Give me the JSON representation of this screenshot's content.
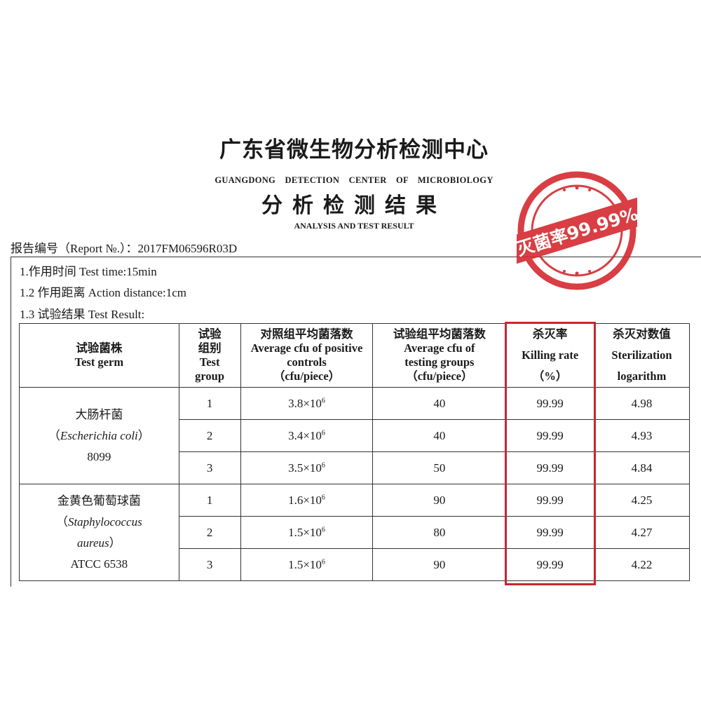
{
  "header": {
    "title_cn": "广东省微生物分析检测中心",
    "title_en": "GUANGDONG DETECTION CENTER OF MICROBIOLOGY",
    "subtitle_cn": "分析检测结果",
    "subtitle_en": "ANALYSIS AND TEST RESULT"
  },
  "report_no": "报告编号（Report №.）：2017FM06596R03D",
  "stamp": {
    "text": "灭菌率99.99%",
    "color": "#d42a2f"
  },
  "info": [
    "1.作用时间 Test time:15min",
    "1.2 作用距离 Action distance:1cm",
    "1.3 试验结果 Test Result:"
  ],
  "table": {
    "headers": [
      {
        "cn": "试验菌株",
        "en": "Test germ"
      },
      {
        "cn": "试验组别",
        "en": "Test group"
      },
      {
        "cn": "对照组平均菌落数",
        "en": "Average cfu of positive controls",
        "unit": "（cfu/piece）"
      },
      {
        "cn": "试验组平均菌落数",
        "en": "Average cfu of testing groups",
        "unit": "（cfu/piece）"
      },
      {
        "cn": "杀灭率",
        "en": "Killing rate",
        "unit": "（%）"
      },
      {
        "cn": "杀灭对数值",
        "en": "Sterilization logarithm"
      }
    ],
    "germs": [
      {
        "cn": "大肠杆菌",
        "latin": "Escherichia coli",
        "strain": "8099",
        "rows": [
          {
            "group": "1",
            "control": "3.8×10",
            "exp": "6",
            "test": "40",
            "rate": "99.99",
            "log": "4.98"
          },
          {
            "group": "2",
            "control": "3.4×10",
            "exp": "6",
            "test": "40",
            "rate": "99.99",
            "log": "4.93"
          },
          {
            "group": "3",
            "control": "3.5×10",
            "exp": "6",
            "test": "50",
            "rate": "99.99",
            "log": "4.84"
          }
        ]
      },
      {
        "cn": "金黄色葡萄球菌",
        "latin1": "Staphylococcus",
        "latin2": "aureus",
        "strain": "ATCC 6538",
        "rows": [
          {
            "group": "1",
            "control": "1.6×10",
            "exp": "6",
            "test": "90",
            "rate": "99.99",
            "log": "4.25"
          },
          {
            "group": "2",
            "control": "1.5×10",
            "exp": "6",
            "test": "80",
            "rate": "99.99",
            "log": "4.27"
          },
          {
            "group": "3",
            "control": "1.5×10",
            "exp": "6",
            "test": "90",
            "rate": "99.99",
            "log": "4.22"
          }
        ]
      }
    ],
    "highlight_color": "#c8262f"
  }
}
